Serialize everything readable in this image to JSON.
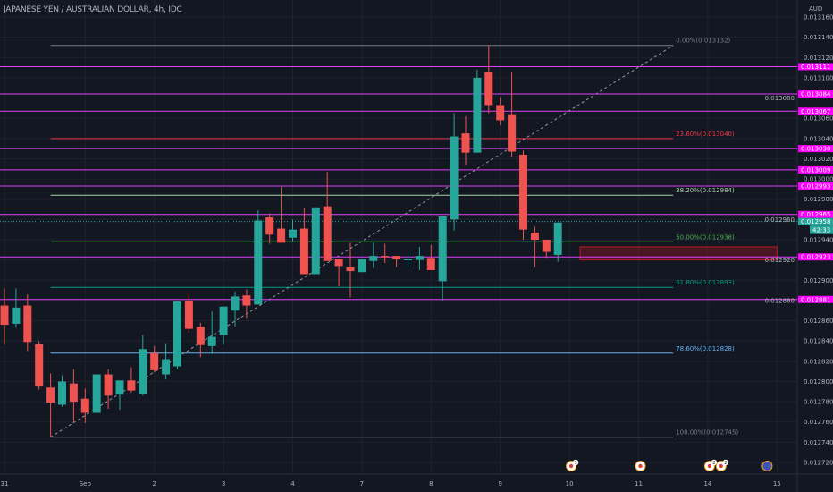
{
  "header": {
    "title": "JAPANESE YEN / AUSTRALIAN DOLLAR, 4h, IDC"
  },
  "colors": {
    "background": "#131722",
    "up": "#26a69a",
    "down": "#ef5350",
    "level": "#e040fb",
    "level_tag": "#ff00ff",
    "grid": "#1e222d",
    "axis_text": "#b2b5be"
  },
  "chart_data": {
    "type": "candlestick",
    "title": "JAPANESE YEN / AUSTRALIAN DOLLAR, 4h, IDC",
    "currency_label": "AUD",
    "ylim": [
      0.01271,
      0.013175
    ],
    "y_ticks": [
      "0.013160",
      "0.013140",
      "0.013120",
      "0.013100",
      "0.013080",
      "0.013060",
      "0.013040",
      "0.013020",
      "0.013000",
      "0.012980",
      "0.012960",
      "0.012940",
      "0.012920",
      "0.012900",
      "0.012880",
      "0.012860",
      "0.012840",
      "0.012820",
      "0.012800",
      "0.012780",
      "0.012760",
      "0.012740",
      "0.012720"
    ],
    "x_ticks": [
      {
        "label": "31",
        "candle": 0
      },
      {
        "label": "Sep",
        "candle": 7
      },
      {
        "label": "2",
        "candle": 13
      },
      {
        "label": "3",
        "candle": 19
      },
      {
        "label": "4",
        "candle": 25
      },
      {
        "label": "7",
        "candle": 31
      },
      {
        "label": "8",
        "candle": 37
      },
      {
        "label": "9",
        "candle": 43
      },
      {
        "label": "10",
        "candle": 49
      },
      {
        "label": "11",
        "candle": 55
      },
      {
        "label": "14",
        "candle": 61
      },
      {
        "label": "15",
        "candle": 67
      }
    ],
    "candles": [
      [
        0.012875,
        0.012892,
        0.012837,
        0.012856
      ],
      [
        0.012857,
        0.012892,
        0.012853,
        0.012873
      ],
      [
        0.012875,
        0.012886,
        0.01283,
        0.012839
      ],
      [
        0.012837,
        0.01284,
        0.012792,
        0.012795
      ],
      [
        0.012794,
        0.012808,
        0.012745,
        0.012779
      ],
      [
        0.012777,
        0.012806,
        0.012775,
        0.0128
      ],
      [
        0.012798,
        0.012812,
        0.01276,
        0.01278
      ],
      [
        0.012783,
        0.012793,
        0.012759,
        0.012769
      ],
      [
        0.012769,
        0.012807,
        0.012769,
        0.012807
      ],
      [
        0.012807,
        0.012812,
        0.012773,
        0.012786
      ],
      [
        0.012787,
        0.012801,
        0.012772,
        0.012801
      ],
      [
        0.012801,
        0.012814,
        0.012789,
        0.012791
      ],
      [
        0.012788,
        0.012846,
        0.012786,
        0.012832
      ],
      [
        0.012828,
        0.012835,
        0.012809,
        0.012811
      ],
      [
        0.012807,
        0.012838,
        0.012802,
        0.012822
      ],
      [
        0.012815,
        0.012879,
        0.012812,
        0.012879
      ],
      [
        0.01288,
        0.012887,
        0.012848,
        0.012852
      ],
      [
        0.012854,
        0.012858,
        0.012824,
        0.012836
      ],
      [
        0.012835,
        0.012869,
        0.012827,
        0.012844
      ],
      [
        0.012846,
        0.012874,
        0.012837,
        0.012874
      ],
      [
        0.01287,
        0.012889,
        0.012854,
        0.012884
      ],
      [
        0.012885,
        0.012891,
        0.012862,
        0.012875
      ],
      [
        0.012876,
        0.012969,
        0.012876,
        0.012959
      ],
      [
        0.012962,
        0.012966,
        0.012936,
        0.012945
      ],
      [
        0.012951,
        0.012992,
        0.012937,
        0.012937
      ],
      [
        0.012942,
        0.01296,
        0.012938,
        0.01295
      ],
      [
        0.012951,
        0.012972,
        0.012906,
        0.012906
      ],
      [
        0.012906,
        0.012972,
        0.012906,
        0.012972
      ],
      [
        0.012973,
        0.013007,
        0.012919,
        0.012919
      ],
      [
        0.012921,
        0.012921,
        0.012894,
        0.012914
      ],
      [
        0.012913,
        0.012937,
        0.012883,
        0.012909
      ],
      [
        0.012908,
        0.012921,
        0.012908,
        0.012921
      ],
      [
        0.012919,
        0.012938,
        0.012912,
        0.012924
      ],
      [
        0.012924,
        0.012936,
        0.012917,
        0.012923
      ],
      [
        0.012924,
        0.012924,
        0.012913,
        0.012921
      ],
      [
        0.01292,
        0.012928,
        0.012913,
        0.012921
      ],
      [
        0.01292,
        0.012933,
        0.01291,
        0.012924
      ],
      [
        0.012922,
        0.012935,
        0.01291,
        0.01291
      ],
      [
        0.012899,
        0.012963,
        0.01288,
        0.012963
      ],
      [
        0.01296,
        0.013065,
        0.012949,
        0.013042
      ],
      [
        0.013045,
        0.013062,
        0.013014,
        0.013026
      ],
      [
        0.013026,
        0.013108,
        0.013026,
        0.0131
      ],
      [
        0.013106,
        0.013132,
        0.013065,
        0.013073
      ],
      [
        0.013073,
        0.013081,
        0.013053,
        0.013058
      ],
      [
        0.013064,
        0.013106,
        0.013022,
        0.013027
      ],
      [
        0.013024,
        0.013028,
        0.01294,
        0.01295
      ],
      [
        0.012947,
        0.012953,
        0.012913,
        0.01294
      ],
      [
        0.01294,
        0.01294,
        0.012922,
        0.012928
      ],
      [
        0.012925,
        0.012957,
        0.012918,
        0.012957
      ]
    ],
    "horizontal_levels": [
      "0.013111",
      "0.013084",
      "0.013067",
      "0.013030",
      "0.013009",
      "0.012993",
      "0.012965",
      "0.012923",
      "0.012881"
    ],
    "fibonacci": {
      "from_candle": 4,
      "to_candle": 58,
      "levels": [
        {
          "label": "0.00%(0.013132)",
          "price": 0.013132,
          "color": "#787b86"
        },
        {
          "label": "23.60%(0.013040)",
          "price": 0.01304,
          "color": "#f23645"
        },
        {
          "label": "38.20%(0.012984)",
          "price": 0.012984,
          "color": "#a5d6a7"
        },
        {
          "label": "50.00%(0.012938)",
          "price": 0.012938,
          "color": "#4caf50"
        },
        {
          "label": "61.80%(0.012893)",
          "price": 0.012893,
          "color": "#089981"
        },
        {
          "label": "78.60%(0.012828)",
          "price": 0.012828,
          "color": "#64b5f6"
        },
        {
          "label": "100.00%(0.012745)",
          "price": 0.012745,
          "color": "#787b86"
        }
      ]
    },
    "zone": {
      "from_candle": 49,
      "to_candle": 67,
      "top": 0.012933,
      "bottom": 0.01292
    },
    "last_price": "0.012958",
    "countdown": "42:33",
    "events": [
      {
        "candle": 49,
        "type": "flag-jp",
        "count": "3"
      },
      {
        "candle": 55,
        "type": "flag-jp",
        "count": ""
      },
      {
        "candle": 61,
        "type": "flag-jp",
        "count": "2"
      },
      {
        "candle": 62,
        "type": "flag-jp",
        "count": "2"
      },
      {
        "candle": 66,
        "type": "flag-au",
        "count": ""
      }
    ]
  }
}
